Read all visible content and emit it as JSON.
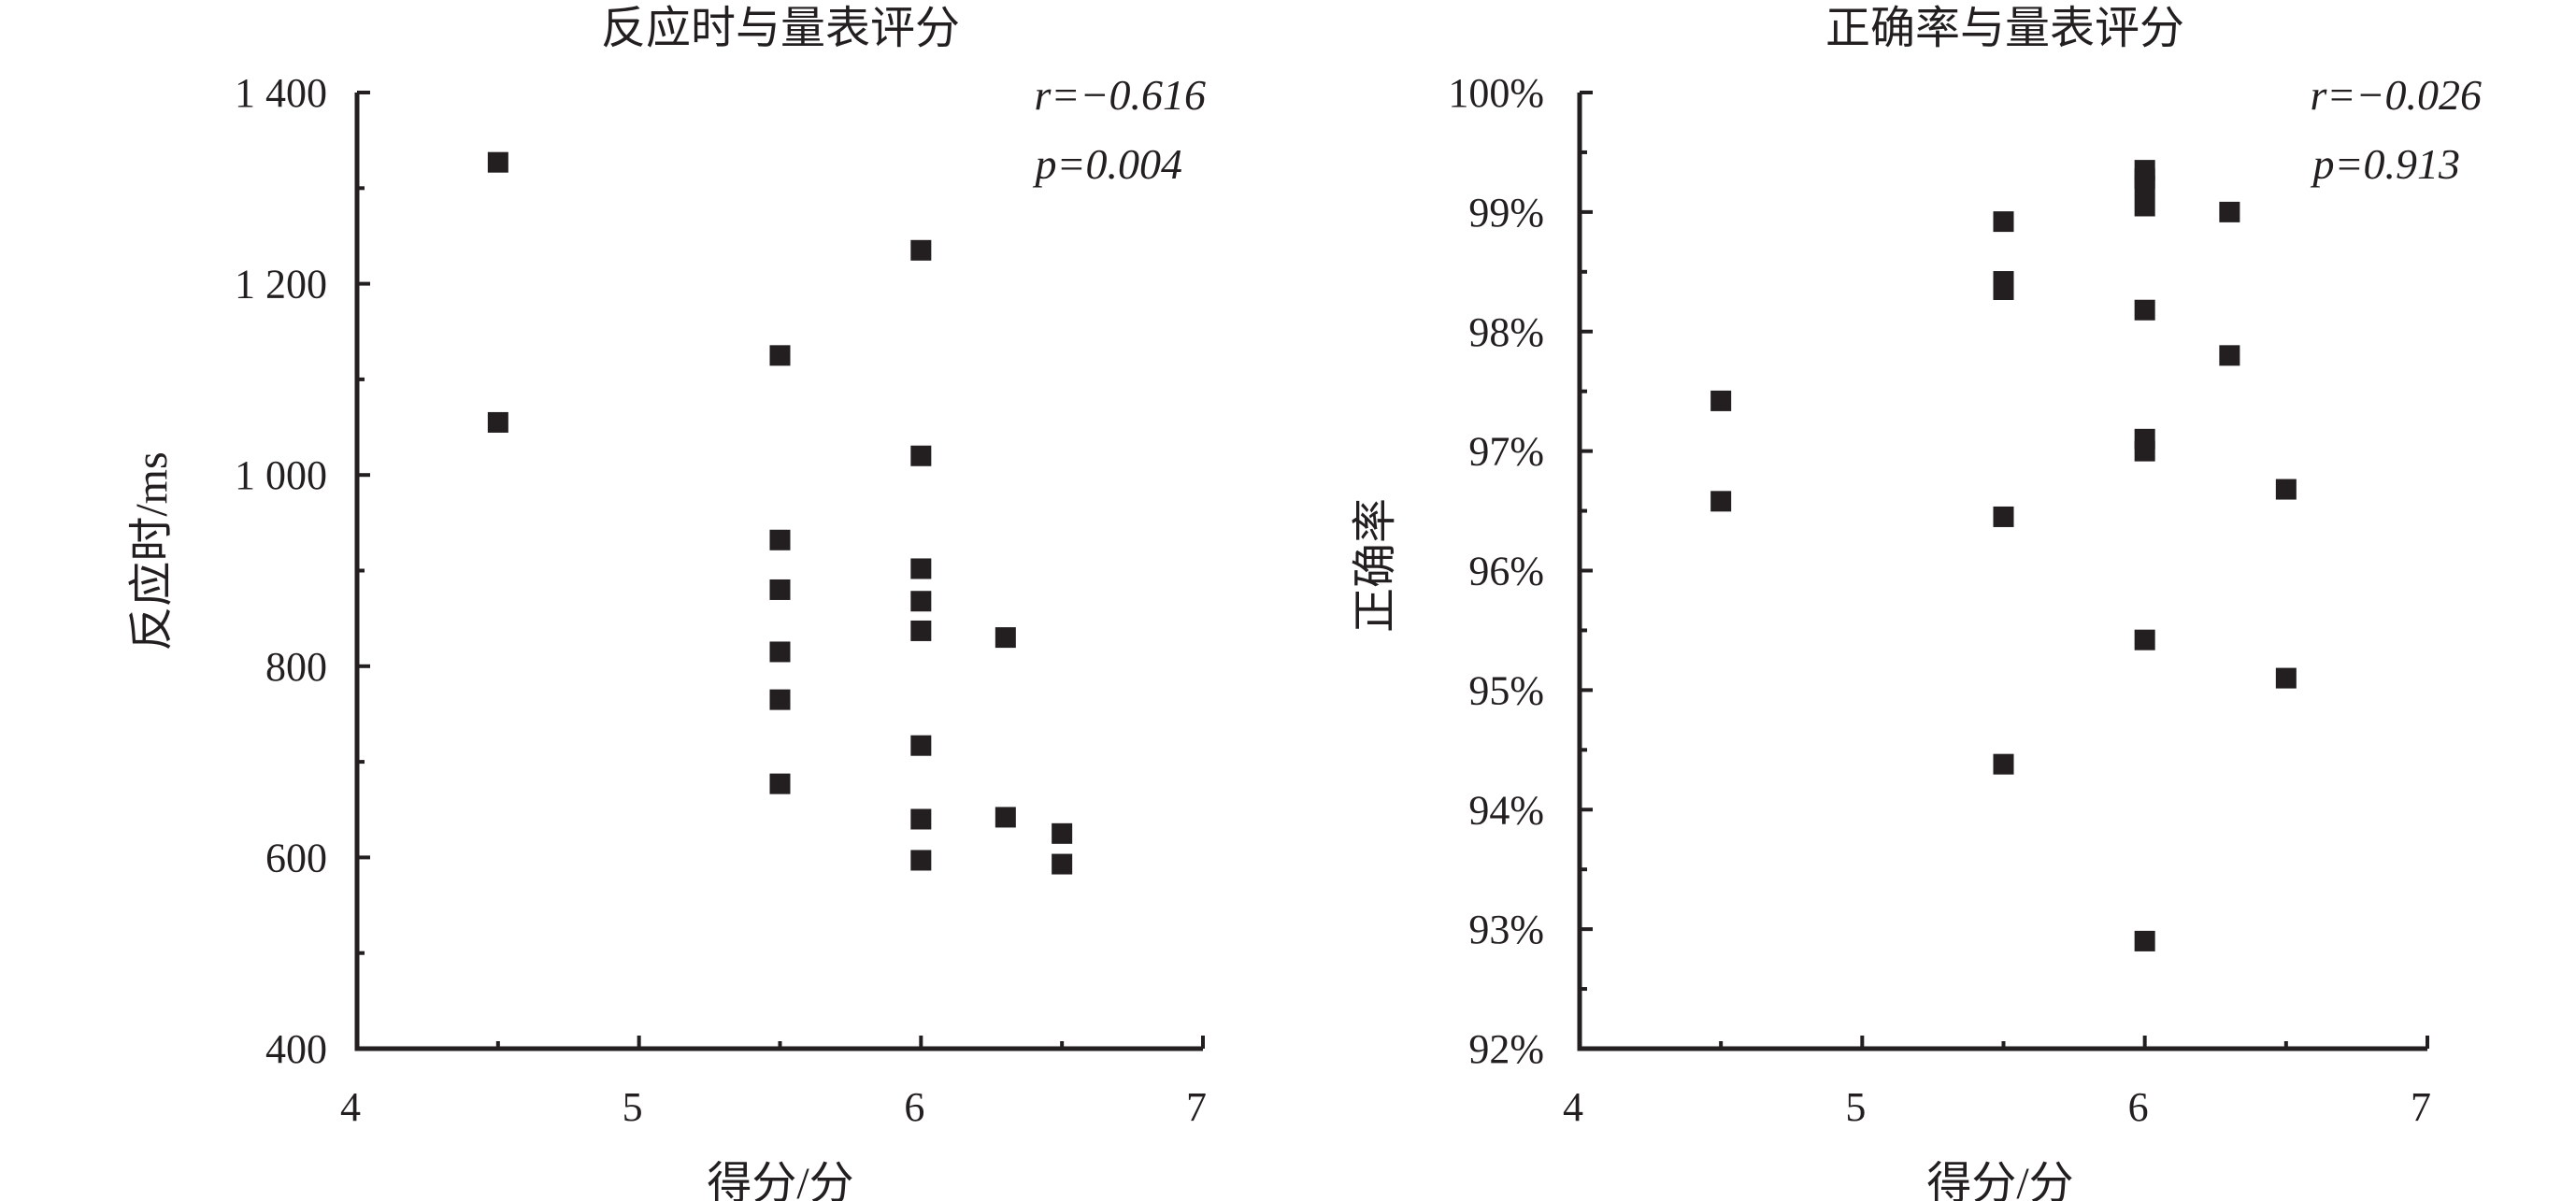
{
  "chart_data": [
    {
      "type": "scatter",
      "title": "反应时与量表评分",
      "xlabel": "得分/分",
      "ylabel": "反应时/ms",
      "xlim": [
        4,
        7
      ],
      "ylim": [
        400,
        1400
      ],
      "x_ticks": [
        "4",
        "5",
        "6",
        "7"
      ],
      "y_ticks": [
        "400",
        "600",
        "800",
        "1 000",
        "1 200",
        "1 400"
      ],
      "annotations": {
        "r": "r=−0.616",
        "p": "p=0.004"
      },
      "marker": "square",
      "color": "#231f20",
      "points": [
        {
          "x": 4.5,
          "y": 1327
        },
        {
          "x": 4.5,
          "y": 1055
        },
        {
          "x": 5.5,
          "y": 1125
        },
        {
          "x": 5.5,
          "y": 932
        },
        {
          "x": 5.5,
          "y": 880
        },
        {
          "x": 5.5,
          "y": 815
        },
        {
          "x": 5.5,
          "y": 765
        },
        {
          "x": 5.5,
          "y": 677
        },
        {
          "x": 6.0,
          "y": 1235
        },
        {
          "x": 6.0,
          "y": 1020
        },
        {
          "x": 6.0,
          "y": 902
        },
        {
          "x": 6.0,
          "y": 868
        },
        {
          "x": 6.0,
          "y": 837
        },
        {
          "x": 6.0,
          "y": 717
        },
        {
          "x": 6.0,
          "y": 640
        },
        {
          "x": 6.0,
          "y": 597
        },
        {
          "x": 6.3,
          "y": 830
        },
        {
          "x": 6.3,
          "y": 642
        },
        {
          "x": 6.5,
          "y": 625
        },
        {
          "x": 6.5,
          "y": 593
        }
      ]
    },
    {
      "type": "scatter",
      "title": "正确率与量表评分",
      "xlabel": "得分/分",
      "ylabel": "正确率",
      "xlim": [
        4,
        7
      ],
      "ylim": [
        92,
        100
      ],
      "x_ticks": [
        "4",
        "5",
        "6",
        "7"
      ],
      "y_ticks": [
        "92%",
        "93%",
        "94%",
        "95%",
        "96%",
        "97%",
        "98%",
        "99%",
        "100%"
      ],
      "annotations": {
        "r": "r=−0.026",
        "p": "p=0.913"
      },
      "marker": "square",
      "color": "#231f20",
      "points": [
        {
          "x": 4.5,
          "y": 97.42
        },
        {
          "x": 4.5,
          "y": 96.58
        },
        {
          "x": 5.5,
          "y": 98.92
        },
        {
          "x": 5.5,
          "y": 98.42
        },
        {
          "x": 5.5,
          "y": 98.35
        },
        {
          "x": 5.5,
          "y": 96.45
        },
        {
          "x": 5.5,
          "y": 94.38
        },
        {
          "x": 6.0,
          "y": 99.35
        },
        {
          "x": 6.0,
          "y": 99.28
        },
        {
          "x": 6.0,
          "y": 99.22
        },
        {
          "x": 6.0,
          "y": 99.05
        },
        {
          "x": 6.0,
          "y": 98.18
        },
        {
          "x": 6.0,
          "y": 97.1
        },
        {
          "x": 6.0,
          "y": 97.0
        },
        {
          "x": 6.0,
          "y": 95.42
        },
        {
          "x": 6.0,
          "y": 92.9
        },
        {
          "x": 6.3,
          "y": 99.0
        },
        {
          "x": 6.3,
          "y": 97.8
        },
        {
          "x": 6.5,
          "y": 96.68
        },
        {
          "x": 6.5,
          "y": 95.1
        }
      ]
    }
  ]
}
